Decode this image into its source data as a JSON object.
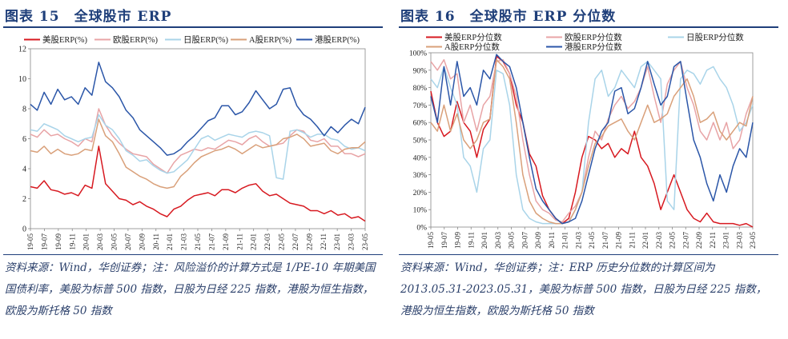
{
  "left": {
    "title": "图表 15　全球股市 ERP",
    "note": "资料来源：Wind，华创证券；注：风险溢价的计算方式是 1/PE-10 年期美国国债利率，美股为标普 500 指数，日股为日经 225 指数，港股为恒生指数，欧股为斯托格 50 指数"
  },
  "right": {
    "title": "图表 16　全球股市 ERP 分位数",
    "note": "资料来源：Wind，华创证券；注：ERP 历史分位数的计算区间为 2013.05.31-2023.05.31，美股为标普 500 指数，日股为日经 225 指数，港股为恒生指数，欧股为斯托格 50 指数"
  },
  "colors": {
    "us": "#d71920",
    "eu": "#e8a4a6",
    "jp": "#a9d4e9",
    "a": "#d9a07a",
    "hk": "#2b56a8"
  },
  "chart_data": [
    {
      "type": "line",
      "title": "全球股市 ERP",
      "ylim": [
        0,
        12
      ],
      "yticks": [
        "0",
        "2",
        "4",
        "6",
        "8",
        "10",
        "12"
      ],
      "xticks": [
        "19-05",
        "19-07",
        "19-09",
        "19-11",
        "20-01",
        "20-03",
        "20-05",
        "20-07",
        "20-09",
        "20-11",
        "21-01",
        "21-03",
        "21-05",
        "21-07",
        "21-09",
        "21-11",
        "22-01",
        "22-03",
        "22-05",
        "22-07",
        "22-09",
        "22-11",
        "23-01",
        "23-03",
        "23-05"
      ],
      "series": [
        {
          "name": "美股ERP(%)",
          "key": "us",
          "values": [
            2.8,
            2.7,
            3.2,
            2.6,
            2.5,
            2.3,
            2.4,
            2.2,
            2.9,
            2.7,
            5.5,
            3.0,
            2.5,
            2.0,
            1.9,
            1.6,
            1.8,
            1.5,
            1.3,
            1.0,
            0.8,
            1.3,
            1.5,
            1.9,
            2.2,
            2.3,
            2.4,
            2.2,
            2.6,
            2.6,
            2.4,
            2.7,
            2.9,
            3.0,
            2.5,
            2.2,
            2.3,
            2.0,
            1.7,
            1.6,
            1.5,
            1.2,
            1.2,
            1.0,
            1.2,
            0.9,
            1.0,
            0.7,
            0.8,
            0.5
          ]
        },
        {
          "name": "欧股ERP(%)",
          "key": "eu",
          "values": [
            6.3,
            6.1,
            6.6,
            6.2,
            6.3,
            6.0,
            5.8,
            5.5,
            6.0,
            5.8,
            8.0,
            6.9,
            6.2,
            5.7,
            5.3,
            5.0,
            4.9,
            4.8,
            4.3,
            4.0,
            3.7,
            4.4,
            4.9,
            5.1,
            5.3,
            5.2,
            5.4,
            5.3,
            5.6,
            5.9,
            5.8,
            5.6,
            6.0,
            6.2,
            5.8,
            5.5,
            5.6,
            5.7,
            6.2,
            6.6,
            6.5,
            5.9,
            5.8,
            6.0,
            5.5,
            5.5,
            5.0,
            5.0,
            4.8,
            5.0
          ]
        },
        {
          "name": "日股ERP(%)",
          "key": "jp",
          "values": [
            6.6,
            6.5,
            7.0,
            6.8,
            6.6,
            6.2,
            6.0,
            5.8,
            6.0,
            6.1,
            7.6,
            6.9,
            6.6,
            6.0,
            5.2,
            4.9,
            4.5,
            4.6,
            4.2,
            3.9,
            3.7,
            3.8,
            4.2,
            4.6,
            5.3,
            6.0,
            6.2,
            5.9,
            6.1,
            6.3,
            6.2,
            6.1,
            6.4,
            6.5,
            6.4,
            6.2,
            3.4,
            3.3,
            6.5,
            6.6,
            6.4,
            6.1,
            6.3,
            6.3,
            6.0,
            5.9,
            5.5,
            5.3,
            5.4,
            5.2
          ]
        },
        {
          "name": "A股ERP(%)",
          "key": "a",
          "values": [
            5.2,
            5.1,
            5.5,
            5.0,
            5.3,
            5.0,
            4.9,
            5.0,
            5.3,
            5.2,
            7.3,
            6.2,
            5.8,
            5.0,
            4.1,
            3.8,
            3.5,
            3.3,
            3.0,
            2.8,
            2.7,
            2.8,
            3.5,
            3.9,
            4.4,
            4.8,
            5.0,
            5.2,
            5.3,
            5.5,
            5.3,
            5.0,
            5.3,
            5.6,
            5.4,
            5.5,
            5.6,
            6.0,
            6.1,
            6.3,
            6.0,
            5.5,
            5.6,
            5.7,
            5.2,
            5.0,
            5.3,
            5.4,
            5.4,
            5.8
          ]
        },
        {
          "name": "港股ERP(%)",
          "key": "hk",
          "values": [
            8.3,
            7.9,
            9.1,
            8.3,
            9.3,
            8.6,
            8.8,
            8.3,
            9.4,
            8.9,
            11.1,
            9.8,
            9.4,
            8.8,
            7.9,
            7.4,
            6.6,
            6.2,
            5.8,
            5.4,
            4.9,
            5.0,
            5.3,
            5.8,
            6.2,
            6.7,
            7.2,
            7.4,
            8.2,
            8.2,
            7.6,
            7.8,
            8.4,
            9.2,
            8.6,
            8.0,
            8.3,
            9.3,
            9.4,
            8.2,
            7.6,
            7.3,
            6.8,
            6.2,
            6.8,
            6.4,
            6.9,
            7.3,
            7.0,
            8.1
          ]
        }
      ]
    },
    {
      "type": "line",
      "title": "全球股市 ERP 分位数",
      "ylim": [
        0,
        100
      ],
      "yticks": [
        "0%",
        "10%",
        "20%",
        "30%",
        "40%",
        "50%",
        "60%",
        "70%",
        "80%",
        "90%",
        "100%"
      ],
      "xticks": [
        "19-05",
        "19-07",
        "19-09",
        "19-11",
        "20-01",
        "20-03",
        "20-05",
        "20-07",
        "20-09",
        "20-11",
        "21-01",
        "21-03",
        "21-05",
        "21-07",
        "21-09",
        "21-11",
        "22-01",
        "22-03",
        "22-05",
        "22-07",
        "22-09",
        "22-11",
        "23-01",
        "23-03",
        "23-05"
      ],
      "series": [
        {
          "name": "美股ERP分位数",
          "key": "us",
          "values": [
            78,
            60,
            52,
            55,
            72,
            60,
            55,
            40,
            56,
            62,
            98,
            95,
            88,
            70,
            60,
            42,
            35,
            18,
            10,
            5,
            2,
            5,
            20,
            40,
            52,
            50,
            45,
            48,
            40,
            45,
            42,
            55,
            40,
            35,
            25,
            10,
            20,
            30,
            20,
            10,
            5,
            3,
            8,
            3,
            2,
            2,
            2,
            1,
            2,
            0
          ]
        },
        {
          "name": "欧股ERP分位数",
          "key": "eu",
          "values": [
            95,
            90,
            96,
            85,
            88,
            60,
            70,
            55,
            70,
            75,
            95,
            96,
            88,
            75,
            50,
            30,
            15,
            10,
            8,
            4,
            3,
            8,
            12,
            20,
            40,
            55,
            50,
            62,
            70,
            75,
            68,
            72,
            80,
            92,
            75,
            60,
            82,
            90,
            95,
            80,
            70,
            55,
            50,
            60,
            50,
            60,
            45,
            50,
            65,
            75
          ]
        },
        {
          "name": "日股ERP分位数",
          "key": "jp",
          "values": [
            85,
            80,
            92,
            80,
            70,
            40,
            35,
            20,
            45,
            50,
            90,
            88,
            70,
            30,
            10,
            5,
            3,
            2,
            2,
            2,
            2,
            3,
            10,
            20,
            60,
            85,
            90,
            75,
            80,
            90,
            85,
            80,
            92,
            95,
            90,
            85,
            15,
            10,
            85,
            90,
            88,
            82,
            90,
            92,
            85,
            80,
            70,
            55,
            60,
            70
          ]
        },
        {
          "name": "A股ERP分位数",
          "key": "a",
          "values": [
            60,
            55,
            70,
            55,
            65,
            50,
            45,
            50,
            60,
            62,
            96,
            92,
            85,
            60,
            30,
            15,
            8,
            5,
            3,
            2,
            2,
            3,
            10,
            20,
            35,
            48,
            52,
            58,
            60,
            62,
            55,
            50,
            60,
            70,
            60,
            62,
            65,
            75,
            80,
            85,
            75,
            60,
            62,
            66,
            55,
            50,
            55,
            60,
            58,
            75
          ]
        },
        {
          "name": "港股ERP分位数",
          "key": "hk",
          "values": [
            75,
            60,
            92,
            70,
            95,
            75,
            80,
            70,
            90,
            85,
            99,
            95,
            92,
            80,
            60,
            40,
            22,
            15,
            10,
            5,
            2,
            3,
            5,
            15,
            30,
            45,
            55,
            60,
            78,
            80,
            65,
            68,
            80,
            95,
            82,
            70,
            75,
            92,
            95,
            72,
            50,
            40,
            25,
            15,
            30,
            20,
            35,
            45,
            40,
            60
          ]
        }
      ]
    }
  ]
}
